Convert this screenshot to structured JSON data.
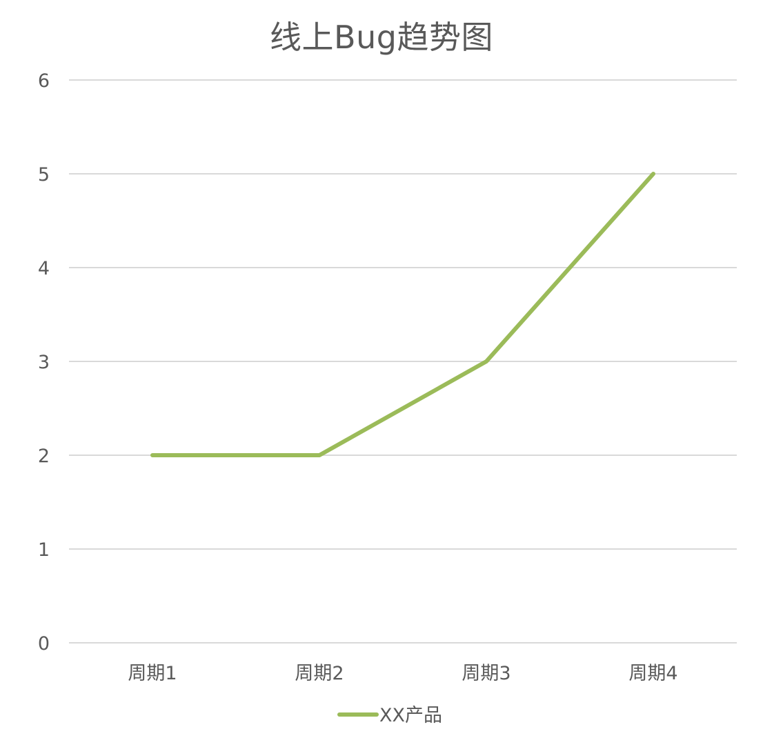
{
  "chart_data": {
    "type": "line",
    "title": "线上Bug趋势图",
    "categories": [
      "周期1",
      "周期2",
      "周期3",
      "周期4"
    ],
    "series": [
      {
        "name": "XX产品",
        "values": [
          2,
          2,
          3,
          5
        ]
      }
    ],
    "ylim": [
      0,
      6
    ],
    "yticks": [
      0,
      1,
      2,
      3,
      4,
      5,
      6
    ],
    "grid": true,
    "legend_position": "bottom",
    "colors": {
      "series": "#9bbb59",
      "grid": "#d9d9d9",
      "text": "#595959"
    }
  }
}
